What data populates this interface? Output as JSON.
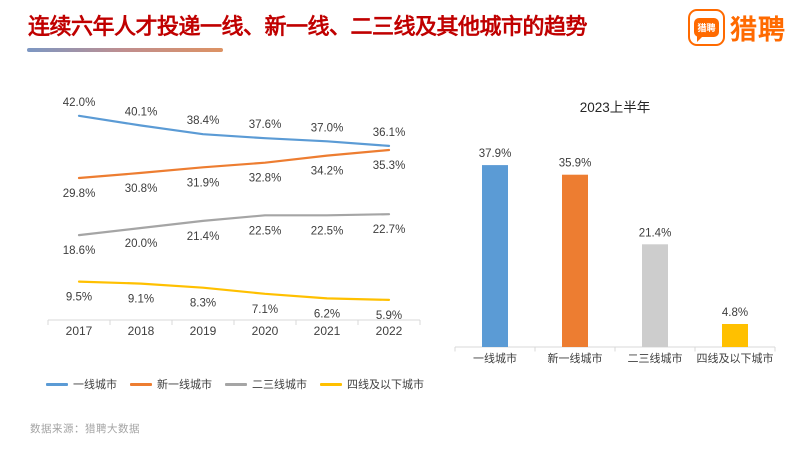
{
  "header": {
    "title": "连续六年人才投递一线、新一线、二三线及其他城市的趋势",
    "title_color": "#c00000"
  },
  "logo": {
    "icon_text": "猎聘",
    "wordmark": "猎聘",
    "brand_color": "#ff6a00"
  },
  "footer": {
    "source": "数据来源：猎聘大数据"
  },
  "chart_data": [
    {
      "type": "line",
      "title": "",
      "x": [
        "2017",
        "2018",
        "2019",
        "2020",
        "2021",
        "2022"
      ],
      "series": [
        {
          "name": "一线城市",
          "color": "#5B9BD5",
          "values": [
            42.0,
            40.1,
            38.4,
            37.6,
            37.0,
            36.1
          ]
        },
        {
          "name": "新一线城市",
          "color": "#ED7D31",
          "values": [
            29.8,
            30.8,
            31.9,
            32.8,
            34.2,
            35.3
          ]
        },
        {
          "name": "二三线城市",
          "color": "#A5A5A5",
          "values": [
            18.6,
            20.0,
            21.4,
            22.5,
            22.5,
            22.7
          ]
        },
        {
          "name": "四线及以下城市",
          "color": "#FFC000",
          "values": [
            9.5,
            9.1,
            8.3,
            7.1,
            6.2,
            5.9
          ]
        }
      ],
      "value_suffix": "%",
      "legend_position": "bottom",
      "grid": false
    },
    {
      "type": "bar",
      "title": "2023上半年",
      "categories": [
        "一线城市",
        "新一线城市",
        "二三线城市",
        "四线及以下城市"
      ],
      "values": [
        37.9,
        35.9,
        21.4,
        4.8
      ],
      "colors": [
        "#5B9BD5",
        "#ED7D31",
        "#CDCDCD",
        "#FFC000"
      ],
      "value_suffix": "%",
      "ylim": [
        0,
        40
      ],
      "grid": false
    }
  ]
}
